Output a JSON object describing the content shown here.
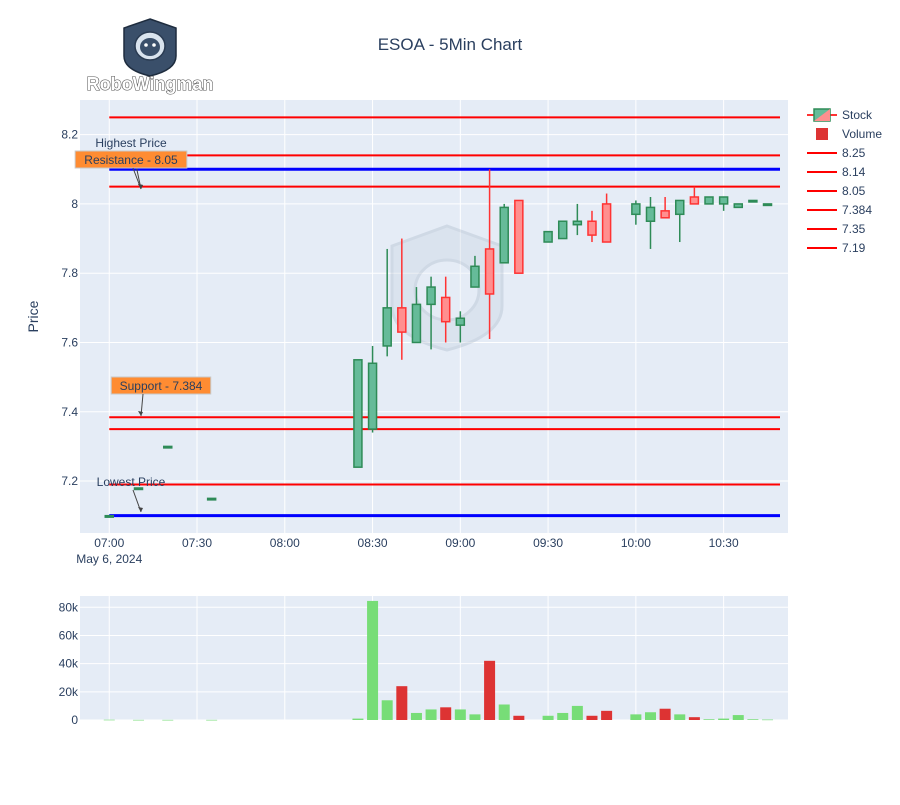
{
  "logo": {
    "text": "RoboWingman",
    "icon": "astronaut-helmet-icon"
  },
  "colors": {
    "increasing": "#2e8b57",
    "increasing_fill": "#66bb99",
    "decreasing": "#ff3333",
    "decreasing_fill": "#ff8f8f",
    "vol_up": "#77dd77",
    "vol_down": "#dd3333",
    "support_resistance": "#ff0000",
    "extreme": "#0000ff",
    "annotation_fill": "#ff8c32",
    "plot_bg": "#e5ecf6"
  },
  "chart_data": {
    "type": "candlestick",
    "title": "ESOA - 5Min Chart",
    "ylabel": "Price",
    "xlabel": "",
    "date_label": "May 6, 2024",
    "grid": true,
    "legend_position": "right",
    "x_ticks": [
      "07:00",
      "07:30",
      "08:00",
      "08:30",
      "09:00",
      "09:30",
      "10:00",
      "10:30"
    ],
    "y_ticks": [
      "7.2",
      "7.4",
      "7.6",
      "7.8",
      "8",
      "8.2"
    ],
    "ylim": [
      7.05,
      8.3
    ],
    "volume_ticks": [
      "0",
      "20k",
      "40k",
      "60k",
      "80k"
    ],
    "volume_ylim": [
      0,
      88000
    ],
    "legend": [
      "Stock",
      "Volume",
      "8.25",
      "8.14",
      "8.05",
      "7.384",
      "7.35",
      "7.19"
    ],
    "candles": [
      {
        "t": "07:00",
        "o": 7.1,
        "h": 7.1,
        "l": 7.1,
        "c": 7.1,
        "v": 200
      },
      {
        "t": "07:10",
        "o": 7.18,
        "h": 7.18,
        "l": 7.18,
        "c": 7.18,
        "v": 100
      },
      {
        "t": "07:20",
        "o": 7.3,
        "h": 7.3,
        "l": 7.3,
        "c": 7.3,
        "v": 100
      },
      {
        "t": "07:35",
        "o": 7.15,
        "h": 7.15,
        "l": 7.15,
        "c": 7.15,
        "v": 100
      },
      {
        "t": "08:25",
        "o": 7.24,
        "h": 7.55,
        "l": 7.24,
        "c": 7.55,
        "v": 1000
      },
      {
        "t": "08:30",
        "o": 7.35,
        "h": 7.59,
        "l": 7.34,
        "c": 7.54,
        "v": 84500
      },
      {
        "t": "08:35",
        "o": 7.59,
        "h": 7.87,
        "l": 7.56,
        "c": 7.7,
        "v": 14000
      },
      {
        "t": "08:40",
        "o": 7.7,
        "h": 7.9,
        "l": 7.55,
        "c": 7.63,
        "v": 24000
      },
      {
        "t": "08:45",
        "o": 7.6,
        "h": 7.76,
        "l": 7.6,
        "c": 7.71,
        "v": 5000
      },
      {
        "t": "08:50",
        "o": 7.71,
        "h": 7.79,
        "l": 7.58,
        "c": 7.76,
        "v": 7500
      },
      {
        "t": "08:55",
        "o": 7.73,
        "h": 7.79,
        "l": 7.6,
        "c": 7.66,
        "v": 9000
      },
      {
        "t": "09:00",
        "o": 7.65,
        "h": 7.69,
        "l": 7.6,
        "c": 7.67,
        "v": 7500
      },
      {
        "t": "09:05",
        "o": 7.76,
        "h": 7.85,
        "l": 7.76,
        "c": 7.82,
        "v": 4000
      },
      {
        "t": "09:10",
        "o": 7.87,
        "h": 8.1,
        "l": 7.61,
        "c": 7.74,
        "v": 42000
      },
      {
        "t": "09:15",
        "o": 7.83,
        "h": 8.0,
        "l": 7.83,
        "c": 7.99,
        "v": 11000
      },
      {
        "t": "09:20",
        "o": 8.01,
        "h": 8.01,
        "l": 7.8,
        "c": 7.8,
        "v": 3000
      },
      {
        "t": "09:30",
        "o": 7.89,
        "h": 7.92,
        "l": 7.89,
        "c": 7.92,
        "v": 3000
      },
      {
        "t": "09:35",
        "o": 7.9,
        "h": 7.95,
        "l": 7.9,
        "c": 7.95,
        "v": 5000
      },
      {
        "t": "09:40",
        "o": 7.94,
        "h": 8.0,
        "l": 7.91,
        "c": 7.95,
        "v": 10000
      },
      {
        "t": "09:45",
        "o": 7.95,
        "h": 7.98,
        "l": 7.89,
        "c": 7.91,
        "v": 3000
      },
      {
        "t": "09:50",
        "o": 8.0,
        "h": 8.03,
        "l": 7.89,
        "c": 7.89,
        "v": 6500
      },
      {
        "t": "10:00",
        "o": 7.97,
        "h": 8.01,
        "l": 7.94,
        "c": 8.0,
        "v": 4000
      },
      {
        "t": "10:05",
        "o": 7.95,
        "h": 8.02,
        "l": 7.87,
        "c": 7.99,
        "v": 5500
      },
      {
        "t": "10:10",
        "o": 7.98,
        "h": 8.02,
        "l": 7.96,
        "c": 7.96,
        "v": 8000
      },
      {
        "t": "10:15",
        "o": 7.97,
        "h": 8.01,
        "l": 7.89,
        "c": 8.01,
        "v": 4000
      },
      {
        "t": "10:20",
        "o": 8.02,
        "h": 8.05,
        "l": 8.0,
        "c": 8.0,
        "v": 2000
      },
      {
        "t": "10:25",
        "o": 8.0,
        "h": 8.02,
        "l": 8.0,
        "c": 8.02,
        "v": 500
      },
      {
        "t": "10:30",
        "o": 8.0,
        "h": 8.02,
        "l": 7.98,
        "c": 8.02,
        "v": 1000
      },
      {
        "t": "10:35",
        "o": 7.99,
        "h": 8.0,
        "l": 7.99,
        "c": 8.0,
        "v": 3500
      },
      {
        "t": "10:40",
        "o": 8.01,
        "h": 8.01,
        "l": 8.01,
        "c": 8.01,
        "v": 500
      },
      {
        "t": "10:45",
        "o": 8.0,
        "h": 8.0,
        "l": 8.0,
        "c": 8.0,
        "v": 300
      }
    ],
    "hlines": [
      {
        "y": 8.25,
        "kind": "level"
      },
      {
        "y": 8.14,
        "kind": "level"
      },
      {
        "y": 8.05,
        "kind": "level"
      },
      {
        "y": 7.384,
        "kind": "level"
      },
      {
        "y": 7.35,
        "kind": "level"
      },
      {
        "y": 7.19,
        "kind": "level"
      },
      {
        "y": 8.1,
        "kind": "extreme"
      },
      {
        "y": 7.1,
        "kind": "extreme"
      }
    ],
    "annotations": [
      {
        "text": "Highest Price",
        "y": 8.05,
        "boxed": false
      },
      {
        "text": "Resistance - 8.05",
        "y": 8.05,
        "boxed": true
      },
      {
        "text": "Support - 7.384",
        "y": 7.384,
        "boxed": true
      },
      {
        "text": "Lowest Price",
        "y": 7.1,
        "boxed": false
      }
    ]
  }
}
